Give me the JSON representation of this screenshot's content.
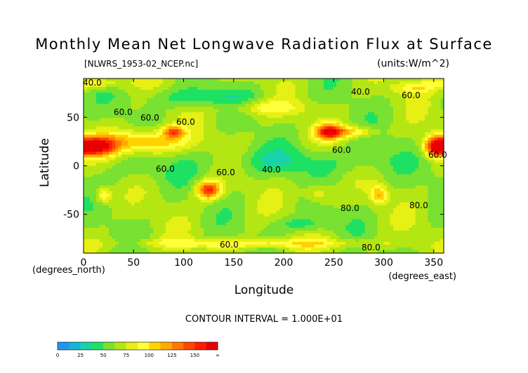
{
  "chart_data": {
    "type": "heatmap",
    "title": "Monthly Mean Net Longwave Radiation Flux at Surface",
    "file_label": "[NLWRS_1953-02_NCEP.nc]",
    "units_label": "(units:W/m^2)",
    "xlabel": "Longitude",
    "ylabel": "Latitude",
    "x_unit_label": "(degrees_east)",
    "y_unit_label": "(degrees_north)",
    "xlim": [
      0,
      360
    ],
    "ylim": [
      -90,
      90
    ],
    "x_ticks": [
      0,
      50,
      100,
      150,
      200,
      250,
      300,
      350
    ],
    "y_ticks": [
      50,
      0,
      -50
    ],
    "contour_interval_text": "CONTOUR INTERVAL = 1.000E+01",
    "contour_labels": [
      "40.0",
      "60.0",
      "60.0",
      "60.0",
      "60.0",
      "60.0",
      "40.0",
      "60.0",
      "40.0",
      "60.0",
      "60.0",
      "80.0",
      "80.0",
      "60.0",
      "80.0"
    ],
    "colorbar": {
      "ticks": [
        "0",
        "25",
        "50",
        "75",
        "100",
        "125",
        "150",
        "∞"
      ],
      "colors": [
        "#1e96f0",
        "#14b4d2",
        "#19d2aa",
        "#1ee164",
        "#78e132",
        "#b4e614",
        "#e6f014",
        "#ffff3c",
        "#ffd200",
        "#ffaa00",
        "#ff7800",
        "#ff4600",
        "#ff1e00",
        "#e60000"
      ]
    }
  }
}
